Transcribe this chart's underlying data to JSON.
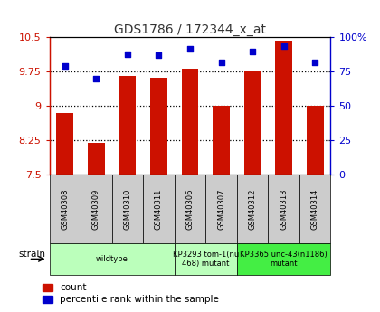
{
  "title": "GDS1786 / 172344_x_at",
  "samples": [
    "GSM40308",
    "GSM40309",
    "GSM40310",
    "GSM40311",
    "GSM40306",
    "GSM40307",
    "GSM40312",
    "GSM40313",
    "GSM40314"
  ],
  "bar_values": [
    8.85,
    8.2,
    9.65,
    9.62,
    9.82,
    9.0,
    9.75,
    10.42,
    9.0
  ],
  "dot_values": [
    79,
    70,
    88,
    87,
    92,
    82,
    90,
    94,
    82
  ],
  "ylim_left": [
    7.5,
    10.5
  ],
  "ylim_right": [
    0,
    100
  ],
  "yticks_left": [
    7.5,
    8.25,
    9.0,
    9.75,
    10.5
  ],
  "yticks_right": [
    0,
    25,
    50,
    75,
    100
  ],
  "ytick_labels_left": [
    "7.5",
    "8.25",
    "9",
    "9.75",
    "10.5"
  ],
  "ytick_labels_right": [
    "0",
    "25",
    "50",
    "75",
    "100%"
  ],
  "hlines": [
    8.25,
    9.0,
    9.75
  ],
  "bar_color": "#cc1100",
  "dot_color": "#0000cc",
  "groups": [
    {
      "label": "wildtype",
      "start": 0,
      "end": 4,
      "color": "#bbffbb"
    },
    {
      "label": "KP3293 tom-1(nu\n468) mutant",
      "start": 4,
      "end": 6,
      "color": "#bbffbb"
    },
    {
      "label": "KP3365 unc-43(n1186)\nmutant",
      "start": 6,
      "end": 9,
      "color": "#44ee44"
    }
  ],
  "strain_label": "strain",
  "legend_bar_label": "count",
  "legend_dot_label": "percentile rank within the sample",
  "title_color": "#333333",
  "left_axis_color": "#cc1100",
  "right_axis_color": "#0000cc",
  "bg_color": "#ffffff",
  "sample_box_color": "#cccccc"
}
